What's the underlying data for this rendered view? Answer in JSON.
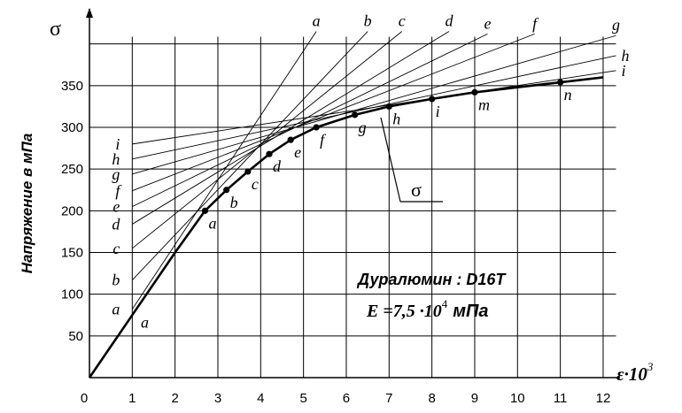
{
  "chart_data": {
    "type": "line",
    "title": "",
    "y_axis_symbol": "σ",
    "ylabel": "Напряжение в мПа",
    "xlabel": "ε·10",
    "xlabel_exponent": "3",
    "x_ticks": [
      "0",
      "1",
      "2",
      "3",
      "4",
      "5",
      "6",
      "7",
      "8",
      "9",
      "10",
      "11",
      "12"
    ],
    "y_ticks": [
      "50",
      "100",
      "150",
      "200",
      "250",
      "300",
      "350"
    ],
    "xlim": [
      0,
      12.3
    ],
    "ylim": [
      0,
      415
    ],
    "grid": true,
    "curve_label": "σ",
    "annotation": {
      "material_label": "Дуралюмин : D16T",
      "modulus_prefix": "E =7,5 ·10",
      "modulus_exponent": "4",
      "modulus_unit": "мПа"
    },
    "series": [
      {
        "name": "σ",
        "points": [
          [
            0,
            0
          ],
          [
            1,
            75
          ],
          [
            2,
            150
          ],
          [
            2.7,
            200
          ],
          [
            3.2,
            225
          ],
          [
            3.7,
            247
          ],
          [
            4.2,
            268
          ],
          [
            4.7,
            285
          ],
          [
            5.3,
            300
          ],
          [
            6.2,
            315
          ],
          [
            7.0,
            325
          ],
          [
            8.0,
            334
          ],
          [
            9.0,
            342
          ],
          [
            10.0,
            348
          ],
          [
            11.0,
            354
          ],
          [
            12.0,
            360
          ]
        ]
      }
    ],
    "markers": [
      {
        "label": "a",
        "x": 2.7,
        "y": 200
      },
      {
        "label": "b",
        "x": 3.2,
        "y": 225
      },
      {
        "label": "c",
        "x": 3.7,
        "y": 247
      },
      {
        "label": "d",
        "x": 4.2,
        "y": 268
      },
      {
        "label": "e",
        "x": 4.7,
        "y": 285
      },
      {
        "label": "f",
        "x": 5.3,
        "y": 300
      },
      {
        "label": "g",
        "x": 6.2,
        "y": 315
      },
      {
        "label": "h",
        "x": 7.0,
        "y": 325
      },
      {
        "label": "i",
        "x": 8.0,
        "y": 334
      },
      {
        "label": "m",
        "x": 9.0,
        "y": 342
      },
      {
        "label": "n",
        "x": 11.0,
        "y": 354
      }
    ],
    "tangent_lines": [
      {
        "label": "a",
        "x_start": 1.0,
        "y_start": 82,
        "x_end": 5.3,
        "y_end": 415
      },
      {
        "label": "b",
        "x_start": 1.0,
        "y_start": 117,
        "x_end": 6.5,
        "y_end": 415
      },
      {
        "label": "c",
        "x_start": 1.0,
        "y_start": 155,
        "x_end": 7.3,
        "y_end": 415
      },
      {
        "label": "d",
        "x_start": 1.0,
        "y_start": 184,
        "x_end": 8.4,
        "y_end": 415
      },
      {
        "label": "e",
        "x_start": 1.0,
        "y_start": 205,
        "x_end": 9.3,
        "y_end": 412
      },
      {
        "label": "f",
        "x_start": 1.0,
        "y_start": 224,
        "x_end": 10.4,
        "y_end": 412
      },
      {
        "label": "g",
        "x_start": 1.0,
        "y_start": 244,
        "x_end": 12.3,
        "y_end": 410
      },
      {
        "label": "h",
        "x_start": 1.0,
        "y_start": 262,
        "x_end": 12.3,
        "y_end": 386
      },
      {
        "label": "i",
        "x_start": 1.0,
        "y_start": 280,
        "x_end": 12.3,
        "y_end": 368
      }
    ]
  }
}
